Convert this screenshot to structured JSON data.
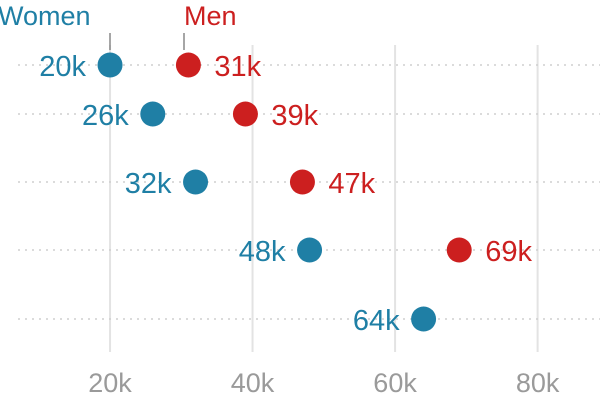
{
  "chart_data": {
    "type": "dumbbell",
    "title": "",
    "xlabel": "",
    "ylabel": "",
    "xlim": [
      0,
      90000
    ],
    "x_ticks": [
      {
        "value": 20000,
        "label": "20k"
      },
      {
        "value": 40000,
        "label": "40k"
      },
      {
        "value": 60000,
        "label": "60k"
      },
      {
        "value": 80000,
        "label": "80k"
      }
    ],
    "grid": true,
    "legend_placement": "top-left",
    "series": [
      {
        "name": "Women",
        "color": "#1f7fa5",
        "values": [
          20000,
          26000,
          32000,
          48000,
          64000
        ],
        "labels": [
          "20k",
          "26k",
          "32k",
          "48k",
          "64k"
        ]
      },
      {
        "name": "Men",
        "color": "#cc1f1f",
        "values": [
          31000,
          39000,
          47000,
          69000,
          null
        ],
        "labels": [
          "31k",
          "39k",
          "47k",
          "69k",
          ""
        ]
      }
    ]
  }
}
